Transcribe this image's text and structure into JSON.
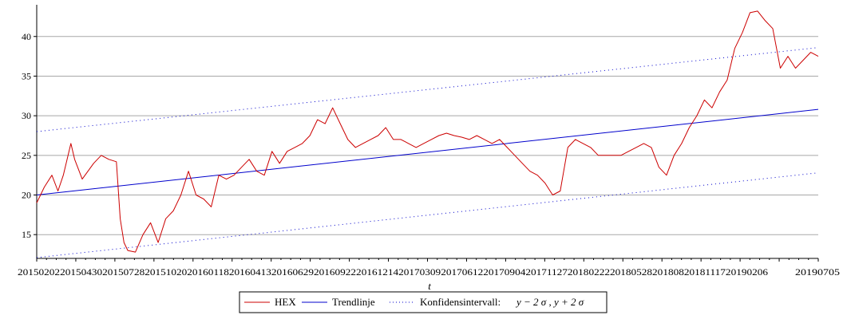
{
  "chart_data": {
    "type": "line",
    "title": "",
    "xlabel": "t",
    "ylabel": "",
    "ylim": [
      12,
      44
    ],
    "y_ticks": [
      15,
      20,
      25,
      30,
      35,
      40
    ],
    "x_tick_labels": [
      "2015020220150430201507282015102020160118201604132016062920160922201612142017030920170612201709042017112720180222201805282018082018111720190206",
      "20190705"
    ],
    "grid": "horizontal",
    "legend_position": "bottom",
    "series": [
      {
        "name": "HEX",
        "color": "#cc0000",
        "style": "solid",
        "x_index": [
          0,
          10,
          20,
          28,
          35,
          45,
          50,
          60,
          75,
          85,
          95,
          105,
          110,
          115,
          120,
          130,
          140,
          150,
          160,
          170,
          180,
          190,
          200,
          210,
          220,
          230,
          240,
          250,
          260,
          270,
          280,
          290,
          300,
          310,
          320,
          330,
          340,
          350,
          360,
          370,
          380,
          390,
          400,
          410,
          420,
          430,
          440,
          450,
          460,
          470,
          480,
          490,
          500,
          510,
          520,
          530,
          540,
          550,
          560,
          570,
          580,
          590,
          600,
          610,
          620,
          630,
          640,
          650,
          660,
          670,
          680,
          690,
          700,
          710,
          720,
          730,
          740,
          750,
          760,
          770,
          780,
          790,
          800,
          810,
          820,
          830,
          840,
          850,
          860,
          870,
          880,
          890,
          900,
          910,
          920,
          930,
          940,
          950,
          960,
          970,
          980,
          990,
          1000,
          1010,
          1020,
          1030
        ],
        "values": [
          19.0,
          21.0,
          22.5,
          20.5,
          22.5,
          26.5,
          24.5,
          22.0,
          24.0,
          25.0,
          24.5,
          24.2,
          17.0,
          14.0,
          13.0,
          12.8,
          15.0,
          16.5,
          14.0,
          17.0,
          18.0,
          20.0,
          23.0,
          20.0,
          19.5,
          18.5,
          22.5,
          22.0,
          22.5,
          23.5,
          24.5,
          23.0,
          22.5,
          25.5,
          24.0,
          25.5,
          26.0,
          26.5,
          27.5,
          29.5,
          29.0,
          31.0,
          29.0,
          27.0,
          26.0,
          26.5,
          27.0,
          27.5,
          28.5,
          27.0,
          27.0,
          26.5,
          26.0,
          26.5,
          27.0,
          27.5,
          27.8,
          27.5,
          27.3,
          27.0,
          27.5,
          27.0,
          26.5,
          27.0,
          26.0,
          25.0,
          24.0,
          23.0,
          22.5,
          21.5,
          20.0,
          20.5,
          26.0,
          27.0,
          26.5,
          26.0,
          25.0,
          25.0,
          25.0,
          25.0,
          25.5,
          26.0,
          26.5,
          26.0,
          23.5,
          22.5,
          25.0,
          26.5,
          28.5,
          30.0,
          32.0,
          31.0,
          33.0,
          34.5,
          38.5,
          40.5,
          43.0,
          43.2,
          42.0,
          41.0,
          36.0,
          37.5,
          36.0,
          37.0,
          38.0,
          37.5
        ]
      },
      {
        "name": "Trendlinje",
        "color": "#0000cc",
        "style": "solid",
        "x_index": [
          0,
          1030
        ],
        "values": [
          20.0,
          30.8
        ]
      },
      {
        "name": "Konfidensintervall: y − 2 σ , y + 2 σ",
        "color": "#0000cc",
        "style": "dotted",
        "x_index": [
          0,
          1030
        ],
        "values": [
          28.0,
          38.6
        ],
        "values_lower": [
          12.1,
          22.8
        ]
      }
    ]
  },
  "legend": {
    "hex_label": "HEX",
    "trend_label": "Trendlinje",
    "ci_label_prefix": "Konfidensintervall:",
    "ci_label_math": "y − 2 σ , y + 2 σ"
  }
}
